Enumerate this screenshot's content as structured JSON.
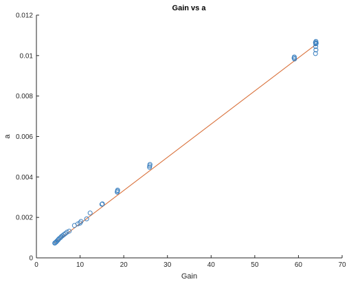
{
  "chart_data": {
    "type": "scatter",
    "title": "Gain vs a",
    "xlabel": "Gain",
    "ylabel": "a",
    "xlim": [
      0,
      70
    ],
    "ylim": [
      0,
      0.012
    ],
    "xticks": [
      0,
      10,
      20,
      30,
      40,
      50,
      60,
      70
    ],
    "xtick_labels": [
      "0",
      "10",
      "20",
      "30",
      "40",
      "50",
      "60",
      "70"
    ],
    "yticks": [
      0,
      0.002,
      0.004,
      0.006,
      0.008,
      0.01,
      0.012
    ],
    "ytick_labels": [
      "0",
      "0.002",
      "0.004",
      "0.006",
      "0.008",
      "0.01",
      "0.012"
    ],
    "grid": false,
    "colors": {
      "points": "#3a7fbf",
      "fit_line": "#d9703a",
      "axes": "#262626"
    },
    "series": [
      {
        "kind": "scatter",
        "marker": "circle",
        "x": [
          4.2,
          4.3,
          4.5,
          4.6,
          4.8,
          5.0,
          5.2,
          5.5,
          5.7,
          6.0,
          6.3,
          6.6,
          7.0,
          7.5,
          8.7,
          9.5,
          10.0,
          10.2,
          11.5,
          12.3,
          15.0,
          15.1,
          18.5,
          18.6,
          18.55,
          25.9,
          25.95,
          26.0,
          59.0,
          59.1,
          59.05,
          63.9,
          64.0,
          63.95,
          64.05,
          63.9,
          64.0,
          63.95,
          64.05
        ],
        "y": [
          0.00073,
          0.00075,
          0.00078,
          0.00081,
          0.00085,
          0.0009,
          0.00095,
          0.001,
          0.00105,
          0.0011,
          0.00115,
          0.0012,
          0.00127,
          0.00132,
          0.0016,
          0.00168,
          0.00172,
          0.0018,
          0.00193,
          0.00222,
          0.00265,
          0.00267,
          0.00325,
          0.00335,
          0.0033,
          0.00448,
          0.00455,
          0.00462,
          0.00988,
          0.00983,
          0.00993,
          0.0101,
          0.01028,
          0.01045,
          0.0106,
          0.01065,
          0.0107,
          0.01058,
          0.01062
        ]
      },
      {
        "kind": "line",
        "x": [
          4.2,
          64.0
        ],
        "y": [
          0.00074,
          0.01055
        ]
      }
    ]
  }
}
